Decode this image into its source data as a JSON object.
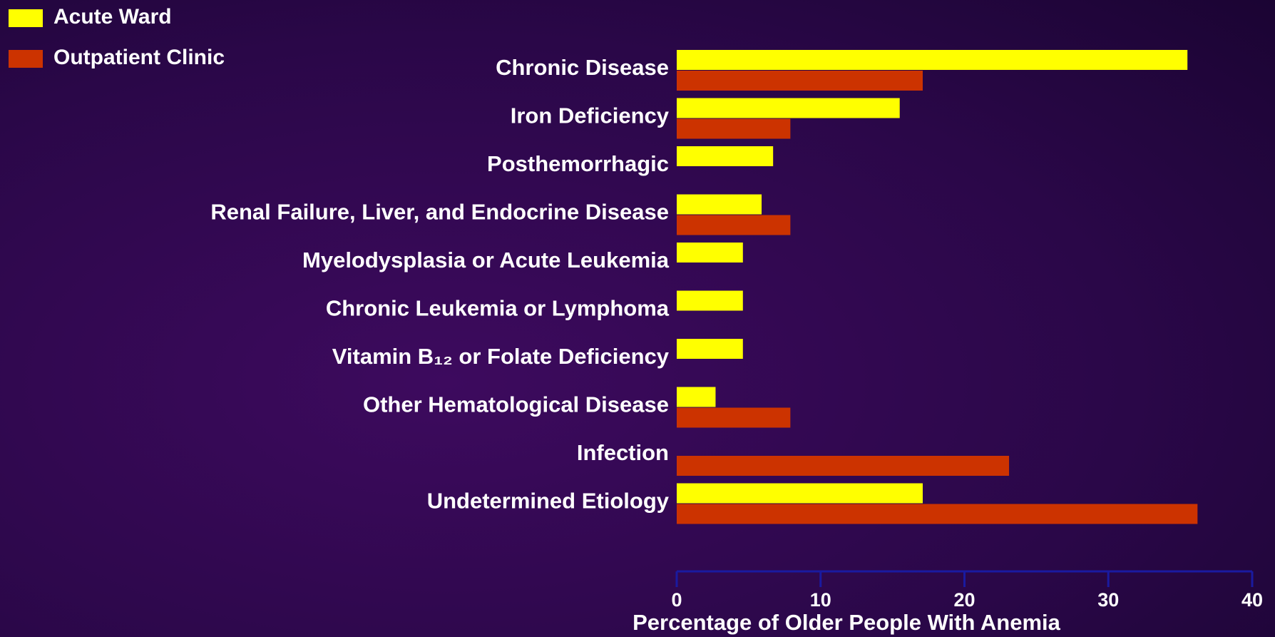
{
  "chart_data": {
    "type": "hbar",
    "xlabel": "Percentage of Older People With Anemia",
    "categories": [
      "Chronic Disease",
      "Iron Deficiency",
      "Posthemorrhagic",
      "Renal Failure, Liver, and Endocrine Disease",
      "Myelodysplasia or Acute Leukemia",
      "Chronic Leukemia or Lymphoma",
      "Vitamin B₁₂ or Folate Deficiency",
      "Other Hematological Disease",
      "Infection",
      "Undetermined Etiology"
    ],
    "series": [
      {
        "name": "Acute Ward",
        "color": "#ffff00",
        "values": [
          35.5,
          15.5,
          6.7,
          5.9,
          4.6,
          4.6,
          4.6,
          2.7,
          null,
          17.1
        ]
      },
      {
        "name": "Outpatient Clinic",
        "color": "#cc3300",
        "values": [
          17.1,
          7.9,
          null,
          7.9,
          null,
          null,
          null,
          7.9,
          23.1,
          36.2
        ]
      }
    ],
    "xlim": [
      0,
      40
    ],
    "xticks": [
      0,
      10,
      20,
      30,
      40
    ],
    "legend": "top-left"
  }
}
